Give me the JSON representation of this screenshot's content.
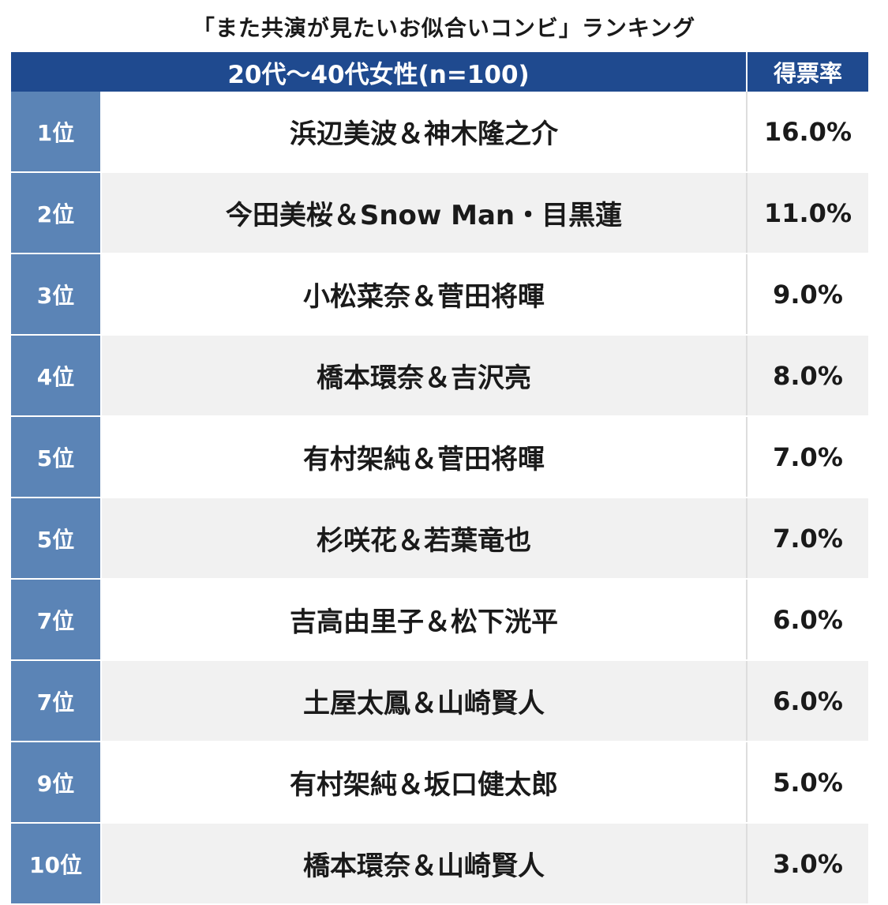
{
  "title": "「また共演が見たいお似合いコンビ」ランキング",
  "header": {
    "group_label": "20代〜40代女性(n=100)",
    "rate_label": "得票率"
  },
  "colors": {
    "header_bg": "#1f4a8f",
    "rank_bg": "#5b84b6",
    "row_alt_bg": "#f1f1f1"
  },
  "chart_data": {
    "type": "table",
    "title": "「また共演が見たいお似合いコンビ」ランキング",
    "columns": [
      "20代〜40代女性(n=100)",
      "得票率"
    ],
    "rows": [
      {
        "rank": "1位",
        "name": "浜辺美波＆神木隆之介",
        "rate": "16.0%",
        "value": 16.0
      },
      {
        "rank": "2位",
        "name": "今田美桜＆Snow Man・目黒蓮",
        "rate": "11.0%",
        "value": 11.0
      },
      {
        "rank": "3位",
        "name": "小松菜奈＆菅田将暉",
        "rate": "9.0%",
        "value": 9.0
      },
      {
        "rank": "4位",
        "name": "橋本環奈＆吉沢亮",
        "rate": "8.0%",
        "value": 8.0
      },
      {
        "rank": "5位",
        "name": "有村架純＆菅田将暉",
        "rate": "7.0%",
        "value": 7.0
      },
      {
        "rank": "5位",
        "name": "杉咲花＆若葉竜也",
        "rate": "7.0%",
        "value": 7.0
      },
      {
        "rank": "7位",
        "name": "吉高由里子＆松下洸平",
        "rate": "6.0%",
        "value": 6.0
      },
      {
        "rank": "7位",
        "name": "土屋太鳳＆山崎賢人",
        "rate": "6.0%",
        "value": 6.0
      },
      {
        "rank": "9位",
        "name": "有村架純＆坂口健太郎",
        "rate": "5.0%",
        "value": 5.0
      },
      {
        "rank": "10位",
        "name": "橋本環奈＆山崎賢人",
        "rate": "3.0%",
        "value": 3.0
      }
    ]
  }
}
